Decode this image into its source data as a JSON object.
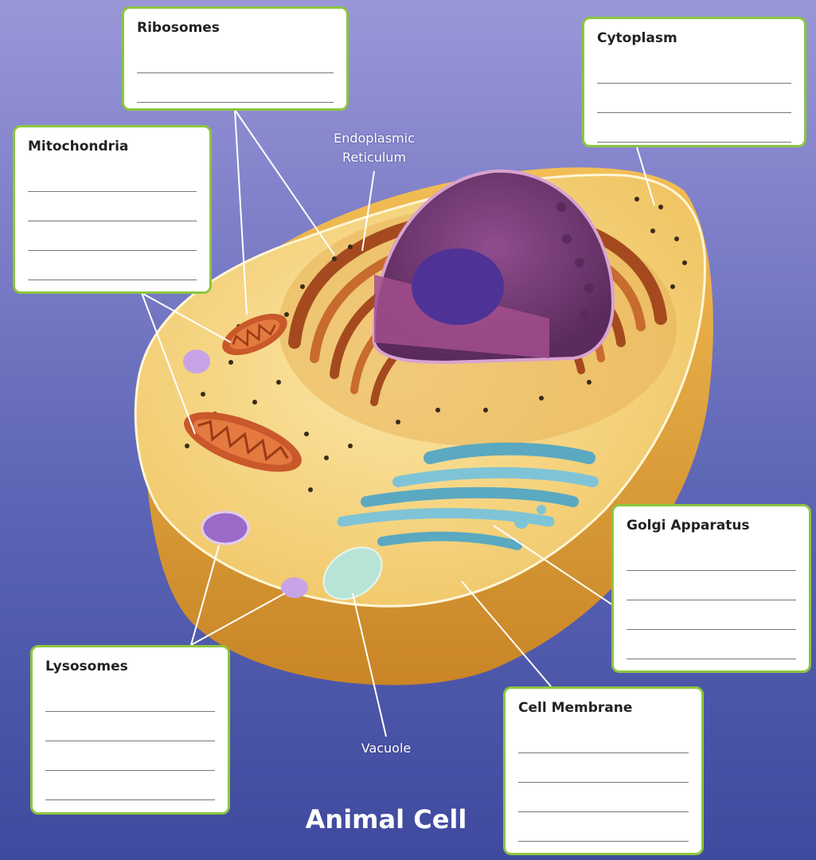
{
  "labels": {
    "ribosomes": "Ribosomes",
    "cytoplasm": "Cytoplasm",
    "mitochondria": "Mitochondria",
    "endoplasmic_reticulum_line1": "Endoplasmic",
    "endoplasmic_reticulum_line2": "Reticulum",
    "golgi_apparatus": "Golgi Apparatus",
    "lysosomes": "Lysosomes",
    "cell_membrane": "Cell Membrane",
    "vacuole": "Vacuole"
  },
  "title": "Animal Cell",
  "colors": {
    "box_border": "#8cc63f",
    "cytoplasm": "#f4d27a",
    "cell_wall": "#e8a93a",
    "nucleus": "#7b3f7a",
    "er": "#b5622c",
    "golgi": "#7fc4d6",
    "lysosome": "#b48ad6"
  }
}
